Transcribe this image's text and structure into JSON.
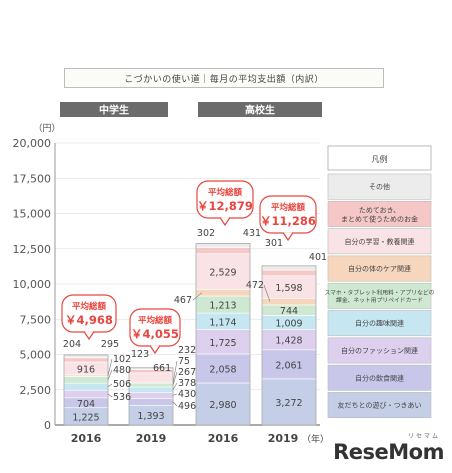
{
  "header": {
    "title": "こづかいの使い道｜毎月の平均支出額（内訳）"
  },
  "brand": {
    "name": "ReseMom",
    "ruby": "リセマム"
  },
  "colors": {
    "groups": "#6b6b6b",
    "callout": "#e8463f",
    "categories": [
      "#c4cfe7",
      "#c8c7ea",
      "#ddd0ee",
      "#c6e7f2",
      "#cfe8d2",
      "#f6d7bd",
      "#f9e3e6",
      "#f5c7c7",
      "#ececec"
    ]
  },
  "chart_data": {
    "type": "bar",
    "stacked": true,
    "groups": [
      "中学生",
      "高校生"
    ],
    "categories": [
      "2016",
      "2019",
      "2016",
      "2019"
    ],
    "x_unit": "（年）",
    "y_unit": "（円）",
    "ylim": [
      0,
      20000
    ],
    "yticks": [
      "0",
      "2,500",
      "5,000",
      "7,500",
      "10,000",
      "12,500",
      "15,000",
      "17,500",
      "20,000"
    ],
    "series": [
      {
        "name": "友だちとの遊び・つきあい",
        "values": [
          1225,
          1393,
          2980,
          3272
        ],
        "labels": [
          "1,225",
          "1,393",
          "2,980",
          "3,272"
        ]
      },
      {
        "name": "自分の飲食関連",
        "values": [
          704,
          496,
          2058,
          2061
        ],
        "labels": [
          "704",
          "496",
          "2,058",
          "2,061"
        ]
      },
      {
        "name": "自分のファッション関連",
        "values": [
          536,
          430,
          1725,
          1428
        ],
        "labels": [
          "536",
          "430",
          "1,725",
          "1,428"
        ]
      },
      {
        "name": "自分の趣味関連",
        "values": [
          506,
          378,
          1174,
          1009
        ],
        "labels": [
          "506",
          "378",
          "1,174",
          "1,009"
        ]
      },
      {
        "name": "スマホ・タブレット利用料・アプリなどの課金、ネット用プリペイドカード",
        "values": [
          480,
          267,
          1213,
          744
        ],
        "labels": [
          "480",
          "267",
          "1,213",
          "744"
        ]
      },
      {
        "name": "自分の体のケア関連",
        "values": [
          102,
          75,
          467,
          472
        ],
        "labels": [
          "102",
          "75",
          "467",
          "472"
        ]
      },
      {
        "name": "自分の学習・教養関連",
        "values": [
          916,
          661,
          2529,
          1598
        ],
        "labels": [
          "916",
          "661",
          "2,529",
          "1,598"
        ]
      },
      {
        "name": "ためておき、まとめて使うためのお金",
        "values": [
          295,
          232,
          431,
          401
        ],
        "labels": [
          "295",
          "232",
          "431",
          "401"
        ]
      },
      {
        "name": "その他",
        "values": [
          204,
          123,
          302,
          301
        ],
        "labels": [
          "204",
          "123",
          "302",
          "301"
        ]
      }
    ],
    "legend_title": "凡例",
    "legend_order": [
      "その他",
      "ためておき、まとめて使うためのお金",
      "自分の学習・教養関連",
      "自分の体のケア関連",
      "スマホ・タブレット利用料・アプリなどの課金、ネット用プリペイドカード",
      "自分の趣味関連",
      "自分のファッション関連",
      "自分の飲食関連",
      "友だちとの遊び・つきあい"
    ],
    "legend_lines": [
      [
        "その他"
      ],
      [
        "ためておき、",
        "まとめて使うためのお金"
      ],
      [
        "自分の学習・教養関連"
      ],
      [
        "自分の体のケア関連"
      ],
      [
        "スマホ・タブレット利用料・アプリなどの",
        "課金、ネット用プリペイドカード"
      ],
      [
        "自分の趣味関連"
      ],
      [
        "自分のファッション関連"
      ],
      [
        "自分の飲食関連"
      ],
      [
        "友だちとの遊び・つきあい"
      ]
    ],
    "totals": [
      {
        "label": "平均総額",
        "value": "￥4,968"
      },
      {
        "label": "平均総額",
        "value": "￥4,055"
      },
      {
        "label": "平均総額",
        "value": "￥12,879"
      },
      {
        "label": "平均総額",
        "value": "￥11,286"
      }
    ]
  }
}
